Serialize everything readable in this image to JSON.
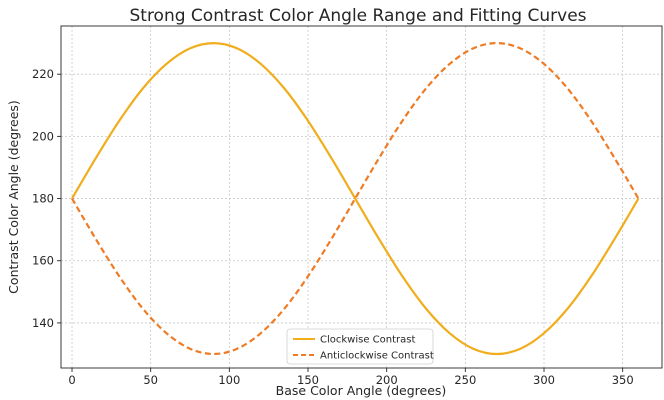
{
  "chart_data": {
    "type": "line",
    "title": "Strong Contrast Color Angle Range and Fitting Curves",
    "xlabel": "Base Color Angle (degrees)",
    "ylabel": "Contrast Color Angle (degrees)",
    "xlim": [
      -7,
      375
    ],
    "ylim": [
      125.5,
      235.5
    ],
    "x_ticks": [
      0,
      50,
      100,
      150,
      200,
      250,
      300,
      350
    ],
    "y_ticks": [
      140,
      160,
      180,
      200,
      220
    ],
    "grid": true,
    "legend_position": "bottom-center",
    "series": [
      {
        "name": "Clockwise Contrast",
        "color": "#f0ad1c",
        "dash": "solid",
        "x": [
          0,
          15,
          30,
          45,
          60,
          75,
          90,
          105,
          120,
          135,
          150,
          165,
          180,
          195,
          210,
          225,
          240,
          255,
          270,
          285,
          300,
          315,
          330,
          345,
          360
        ],
        "y": [
          180,
          192.9,
          205,
          215.4,
          223.3,
          228.3,
          230,
          228.3,
          223.3,
          215.4,
          205,
          192.9,
          180,
          167.1,
          155,
          144.6,
          136.7,
          131.7,
          130,
          131.7,
          136.7,
          144.6,
          155,
          167.1,
          180
        ]
      },
      {
        "name": "Anticlockwise Contrast",
        "color": "#ee7b25",
        "dash": "dashed",
        "x": [
          0,
          15,
          30,
          45,
          60,
          75,
          90,
          105,
          120,
          135,
          150,
          165,
          180,
          195,
          210,
          225,
          240,
          255,
          270,
          285,
          300,
          315,
          330,
          345,
          360
        ],
        "y": [
          180,
          167.1,
          155,
          144.6,
          136.7,
          131.7,
          130,
          131.7,
          136.7,
          144.6,
          155,
          167.1,
          180,
          192.9,
          205,
          215.4,
          223.3,
          228.3,
          230,
          228.3,
          223.3,
          215.4,
          205,
          192.9,
          180
        ]
      }
    ]
  }
}
